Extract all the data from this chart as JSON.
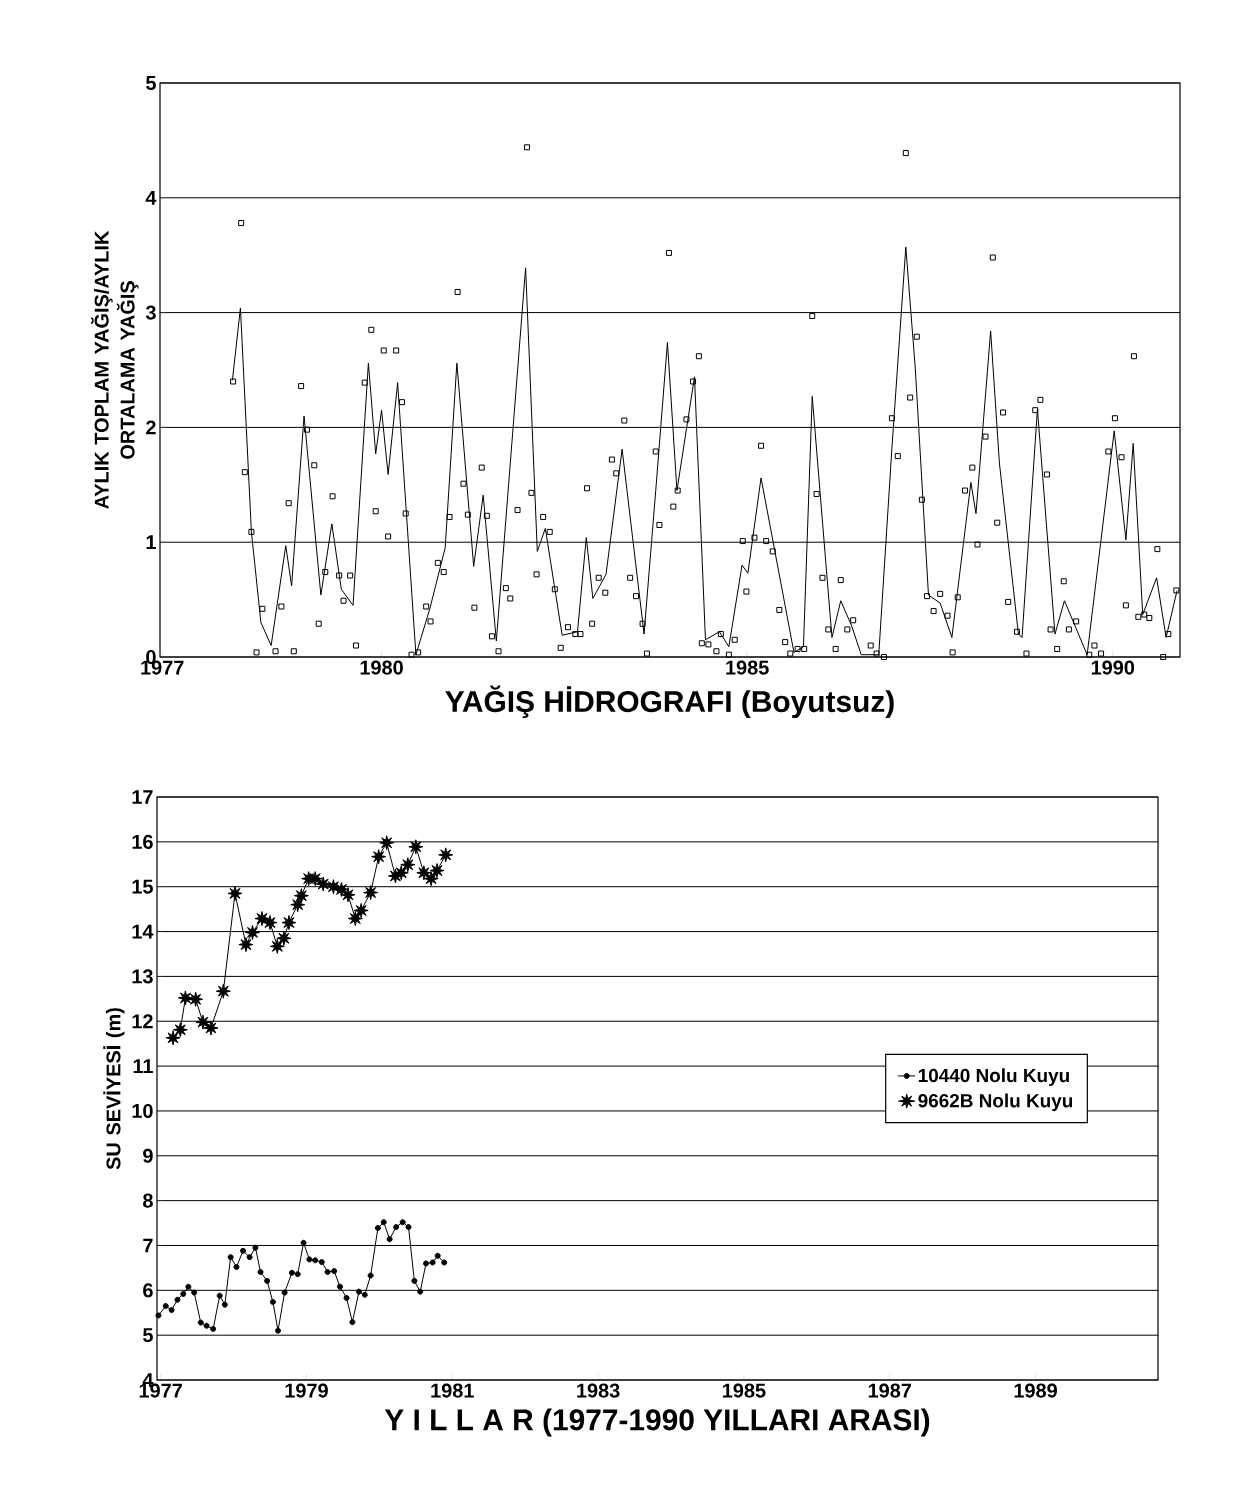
{
  "chart_data": [
    {
      "type": "line",
      "xlabel": "YAĞIŞ HİDROGRAFI (Boyutsuz)",
      "ylabel": "AYLIK TOPLAM YAĞIŞ/AYLIK ORTALAMA YAĞIŞ",
      "xlim": [
        1976.97,
        1990.92
      ],
      "ylim": [
        0,
        5
      ],
      "xticks": [
        1977,
        1980,
        1985,
        1990
      ],
      "yticks": [
        0,
        1,
        2,
        3,
        4,
        5
      ],
      "grid": "y",
      "line_style": "solid",
      "series": [
        {
          "type": "line",
          "color": "#000000",
          "marker": "none",
          "x": [
            1977.96,
            1978.07,
            1978.22,
            1978.35,
            1978.49,
            1978.69,
            1978.77,
            1978.94,
            1979.17,
            1979.32,
            1979.45,
            1979.61,
            1979.82,
            1979.92,
            1980.0,
            1980.09,
            1980.22,
            1980.47,
            1980.66,
            1980.87,
            1981.03,
            1981.26,
            1981.39,
            1981.57,
            1981.97,
            1982.13,
            1982.24,
            1982.47,
            1982.68,
            1982.8,
            1982.89,
            1983.07,
            1983.29,
            1983.59,
            1983.75,
            1983.91,
            1984.04,
            1984.28,
            1984.43,
            1984.62,
            1984.75,
            1984.93,
            1985.01,
            1985.19,
            1985.64,
            1985.77,
            1985.89,
            1986.16,
            1986.28,
            1986.43,
            1986.56,
            1986.8,
            1986.98,
            1987.17,
            1987.3,
            1987.48,
            1987.64,
            1987.8,
            1988.06,
            1988.13,
            1988.33,
            1988.45,
            1988.71,
            1988.76,
            1988.97,
            1989.21,
            1989.34,
            1989.65,
            1990.02,
            1990.18,
            1990.28,
            1990.41,
            1990.6,
            1990.73,
            1990.88
          ],
          "values": [
            2.41,
            3.04,
            1.09,
            0.3,
            0.1,
            0.97,
            0.62,
            2.1,
            0.54,
            1.16,
            0.59,
            0.45,
            2.56,
            1.77,
            2.15,
            1.59,
            2.39,
            0.02,
            0.42,
            0.95,
            2.56,
            0.79,
            1.41,
            0.14,
            3.39,
            0.92,
            1.12,
            0.19,
            0.22,
            1.04,
            0.51,
            0.72,
            1.81,
            0.2,
            1.45,
            2.74,
            1.45,
            2.44,
            0.15,
            0.22,
            0.09,
            0.8,
            0.73,
            1.56,
            0.04,
            0.09,
            2.27,
            0.17,
            0.49,
            0.27,
            0.02,
            0.02,
            1.82,
            3.57,
            2.51,
            0.54,
            0.47,
            0.17,
            1.52,
            1.25,
            2.84,
            1.69,
            0.2,
            0.17,
            2.16,
            0.2,
            0.49,
            0.02,
            1.97,
            1.02,
            1.86,
            0.37,
            0.69,
            0.17,
            0.58
          ]
        },
        {
          "type": "scatter",
          "color": "#000000",
          "marker": "square",
          "x": [
            1978.08,
            1977.97,
            1978.13,
            1978.22,
            1978.37,
            1978.29,
            1978.55,
            1978.63,
            1978.8,
            1978.73,
            1978.9,
            1978.98,
            1979.08,
            1979.14,
            1979.23,
            1979.33,
            1979.42,
            1979.48,
            1979.57,
            1979.65,
            1979.77,
            1979.86,
            1979.92,
            1980.03,
            1980.09,
            1980.2,
            1980.28,
            1980.33,
            1980.41,
            1980.5,
            1980.61,
            1980.67,
            1980.77,
            1980.85,
            1980.93,
            1981.04,
            1981.12,
            1981.18,
            1981.27,
            1981.37,
            1981.44,
            1981.51,
            1981.6,
            1981.7,
            1981.76,
            1981.86,
            1981.99,
            1982.05,
            1982.12,
            1982.21,
            1982.3,
            1982.37,
            1982.45,
            1982.55,
            1982.65,
            1982.72,
            1982.81,
            1982.88,
            1982.97,
            1983.06,
            1983.15,
            1983.21,
            1983.32,
            1983.4,
            1983.48,
            1983.57,
            1983.63,
            1983.75,
            1983.8,
            1983.93,
            1983.99,
            1984.05,
            1984.17,
            1984.26,
            1984.34,
            1984.38,
            1984.47,
            1984.58,
            1984.64,
            1984.75,
            1984.83,
            1984.94,
            1984.99,
            1985.1,
            1985.19,
            1985.26,
            1985.35,
            1985.44,
            1985.52,
            1985.59,
            1985.69,
            1985.78,
            1985.89,
            1985.95,
            1986.03,
            1986.11,
            1986.21,
            1986.28,
            1986.37,
            1986.45,
            1986.69,
            1986.77,
            1986.87,
            1986.98,
            1987.06,
            1987.17,
            1987.23,
            1987.32,
            1987.39,
            1987.46,
            1987.55,
            1987.64,
            1987.74,
            1987.81,
            1987.88,
            1987.98,
            1988.08,
            1988.15,
            1988.26,
            1988.36,
            1988.42,
            1988.5,
            1988.57,
            1988.69,
            1988.82,
            1988.94,
            1989.01,
            1989.1,
            1989.15,
            1989.24,
            1989.33,
            1989.4,
            1989.5,
            1989.68,
            1989.75,
            1989.84,
            1989.94,
            1990.03,
            1990.12,
            1990.18,
            1990.29,
            1990.35,
            1990.43,
            1990.5,
            1990.61,
            1990.69,
            1990.76,
            1990.87
          ],
          "values": [
            3.78,
            2.4,
            1.61,
            1.09,
            0.42,
            0.04,
            0.05,
            0.44,
            0.05,
            1.34,
            2.36,
            1.98,
            1.67,
            0.29,
            0.74,
            1.4,
            0.71,
            0.49,
            0.71,
            0.1,
            2.39,
            2.85,
            1.27,
            2.67,
            1.05,
            2.67,
            2.22,
            1.25,
            0.02,
            0.04,
            0.44,
            0.31,
            0.82,
            0.74,
            1.22,
            3.18,
            1.51,
            1.24,
            0.43,
            1.65,
            1.23,
            0.18,
            0.05,
            0.6,
            0.51,
            1.28,
            4.44,
            1.43,
            0.72,
            1.22,
            1.09,
            0.59,
            0.08,
            0.26,
            0.2,
            0.2,
            1.47,
            0.29,
            0.69,
            0.56,
            1.72,
            1.6,
            2.06,
            0.69,
            0.53,
            0.29,
            0.03,
            1.79,
            1.15,
            3.52,
            1.31,
            1.45,
            2.07,
            2.4,
            2.62,
            0.12,
            0.11,
            0.05,
            0.2,
            0.02,
            0.15,
            1.01,
            0.57,
            1.04,
            1.84,
            1.01,
            0.92,
            0.41,
            0.13,
            0.03,
            0.07,
            0.07,
            2.97,
            1.42,
            0.69,
            0.24,
            0.07,
            0.67,
            0.24,
            0.32,
            0.1,
            0.03,
            0.0,
            2.08,
            1.75,
            4.39,
            2.26,
            2.79,
            1.37,
            0.53,
            0.4,
            0.55,
            0.36,
            0.04,
            0.52,
            1.45,
            1.65,
            0.98,
            1.92,
            3.48,
            1.17,
            2.13,
            0.48,
            0.22,
            0.03,
            2.15,
            2.24,
            1.59,
            0.24,
            0.07,
            0.66,
            0.24,
            0.31,
            0.02,
            0.1,
            0.03,
            1.79,
            2.08,
            1.74,
            0.45,
            2.62,
            0.35,
            0.37,
            0.34,
            0.94,
            0.0,
            0.2,
            0.58
          ]
        }
      ]
    },
    {
      "type": "line",
      "xlabel": "Y I L L A R (1977-1990 YILLARI ARASI)",
      "ylabel": "SU SEVİYESİ (m)",
      "xlim": [
        1976.95,
        1990.68
      ],
      "ylim": [
        4,
        17
      ],
      "xticks": [
        1977,
        1979,
        1981,
        1983,
        1985,
        1987,
        1989
      ],
      "yticks": [
        4,
        5,
        6,
        7,
        8,
        9,
        10,
        11,
        12,
        13,
        14,
        15,
        16,
        17
      ],
      "grid": "y",
      "legend": "right",
      "line_style": "solid",
      "series": [
        {
          "name": "10440 Nolu Kuyu",
          "color": "#000000",
          "marker": "circle",
          "x": [
            1976.97,
            1977.07,
            1977.15,
            1977.23,
            1977.31,
            1977.38,
            1977.46,
            1977.55,
            1977.63,
            1977.72,
            1977.81,
            1977.88,
            1977.96,
            1978.04,
            1978.13,
            1978.22,
            1978.3,
            1978.37,
            1978.46,
            1978.54,
            1978.61,
            1978.7,
            1978.8,
            1978.88,
            1978.96,
            1979.04,
            1979.12,
            1979.21,
            1979.29,
            1979.38,
            1979.46,
            1979.55,
            1979.63,
            1979.72,
            1979.8,
            1979.88,
            1979.98,
            1980.06,
            1980.14,
            1980.23,
            1980.32,
            1980.4,
            1980.48,
            1980.56,
            1980.64,
            1980.73,
            1980.8,
            1980.89
          ],
          "values": [
            5.44,
            5.65,
            5.56,
            5.79,
            5.92,
            6.08,
            5.95,
            5.28,
            5.21,
            5.14,
            5.88,
            5.68,
            6.74,
            6.52,
            6.88,
            6.74,
            6.95,
            6.41,
            6.21,
            5.74,
            5.1,
            5.95,
            6.39,
            6.36,
            7.06,
            6.69,
            6.67,
            6.63,
            6.41,
            6.43,
            6.08,
            5.83,
            5.29,
            5.97,
            5.9,
            6.33,
            7.39,
            7.52,
            7.14,
            7.41,
            7.52,
            7.41,
            6.21,
            5.97,
            6.6,
            6.62,
            6.77,
            6.62
          ]
        },
        {
          "name": "9662B Nolu Kuyu",
          "color": "#000000",
          "marker": "star",
          "x": [
            1977.17,
            1977.27,
            1977.34,
            1977.48,
            1977.58,
            1977.69,
            1977.86,
            1978.02,
            1978.17,
            1978.26,
            1978.39,
            1978.5,
            1978.6,
            1978.69,
            1978.76,
            1978.88,
            1978.93,
            1979.03,
            1979.12,
            1979.23,
            1979.37,
            1979.48,
            1979.57,
            1979.67,
            1979.75,
            1979.88,
            1979.99,
            1980.1,
            1980.22,
            1980.3,
            1980.39,
            1980.5,
            1980.61,
            1980.71,
            1980.79,
            1980.91
          ],
          "values": [
            11.63,
            11.81,
            12.52,
            12.49,
            11.98,
            11.85,
            12.67,
            14.85,
            13.71,
            13.98,
            14.29,
            14.2,
            13.67,
            13.85,
            14.2,
            14.6,
            14.8,
            15.18,
            15.18,
            15.06,
            15.0,
            14.94,
            14.82,
            14.29,
            14.47,
            14.87,
            15.67,
            15.98,
            15.24,
            15.31,
            15.49,
            15.89,
            15.31,
            15.18,
            15.36,
            15.71
          ]
        }
      ]
    }
  ]
}
